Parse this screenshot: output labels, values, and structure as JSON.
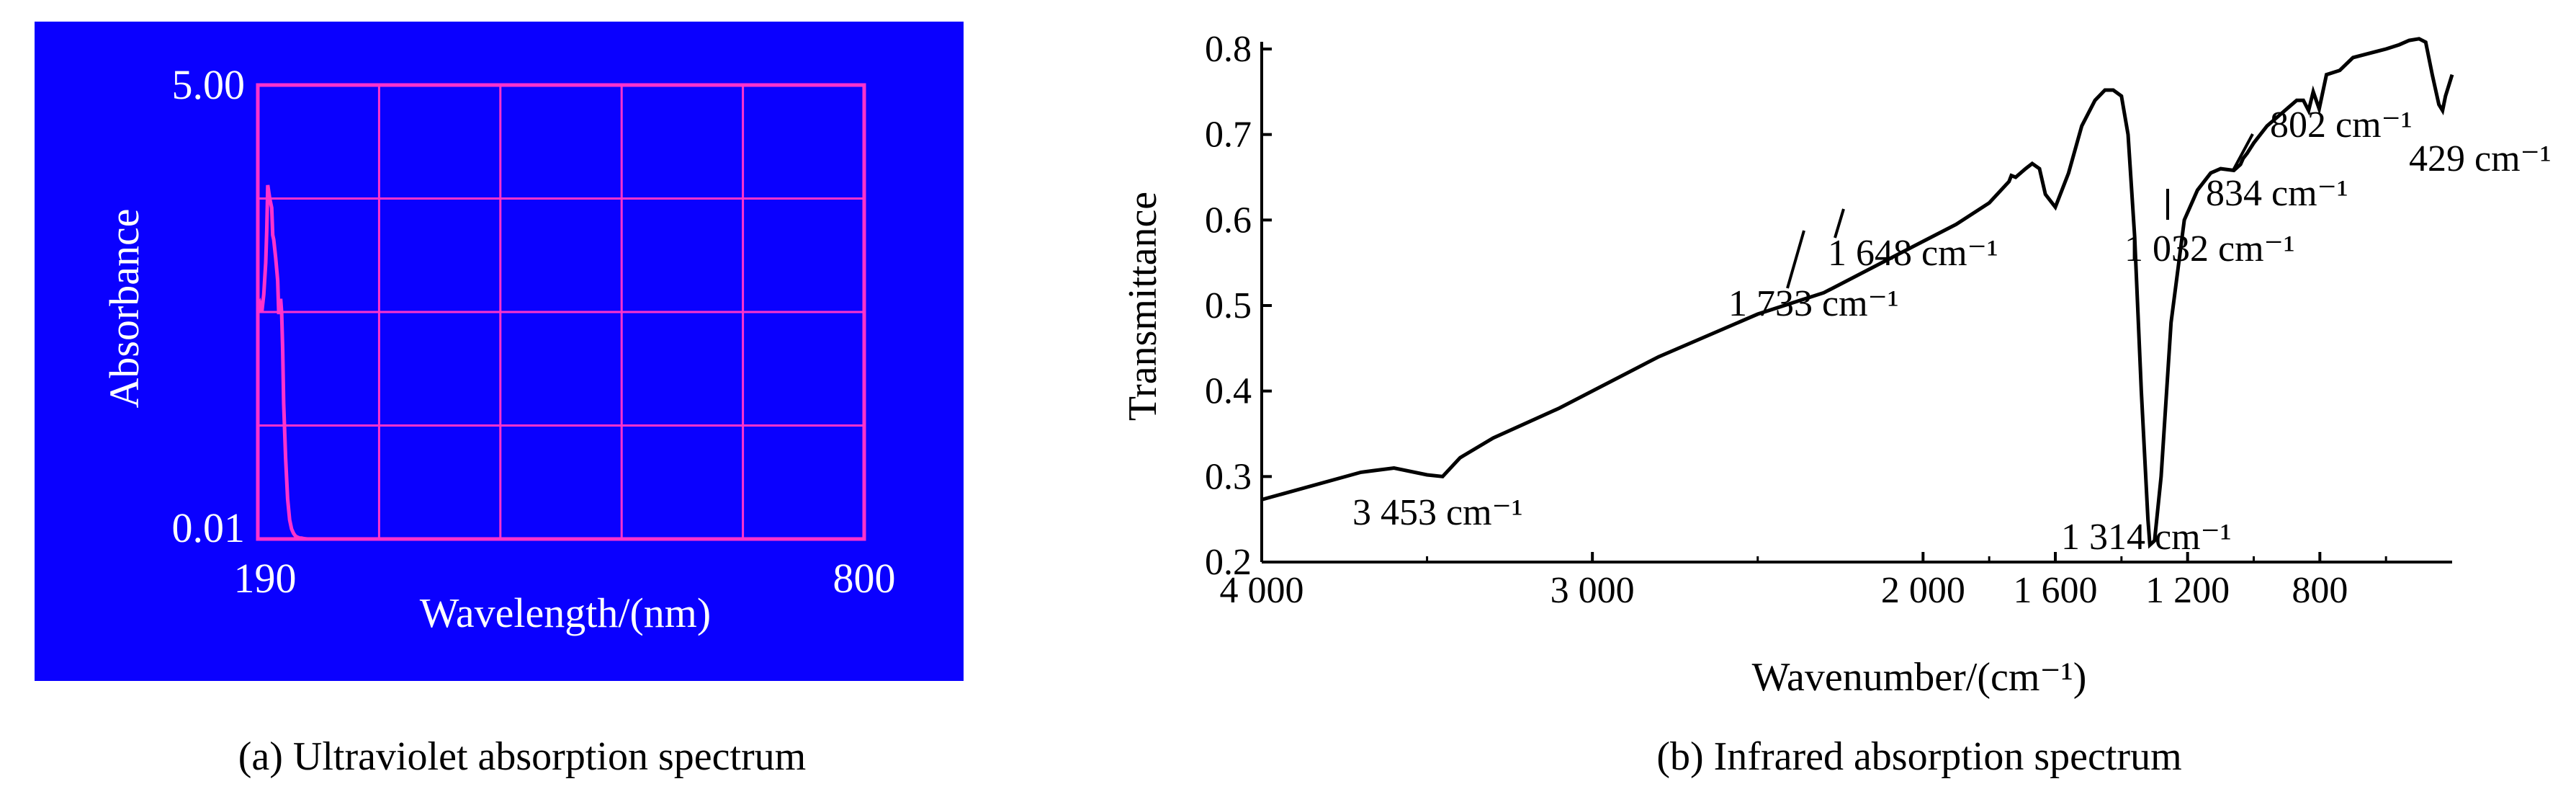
{
  "colors": {
    "uv_background": "#0a00ff",
    "uv_ink": "#ff33cc",
    "uv_text": "#ffffff",
    "ir_ink": "#000000"
  },
  "chart_data": [
    {
      "type": "line",
      "caption": "(a) Ultraviolet absorption spectrum",
      "xlabel": "Wavelength/(nm)",
      "ylabel": "Absorbance",
      "xlim": [
        190,
        800
      ],
      "ylim": [
        0.01,
        5.0
      ],
      "x_tick_labels": [
        "190",
        "800"
      ],
      "y_tick_labels": [
        "5.00",
        "0.01"
      ],
      "grid": true,
      "x": [
        190,
        192,
        194,
        196,
        198,
        199,
        200,
        202,
        204,
        205,
        206,
        208,
        210,
        211,
        212,
        213,
        214,
        215,
        216,
        218,
        220,
        222,
        224,
        226,
        228,
        230,
        232,
        234,
        236,
        238,
        240,
        250,
        260,
        280,
        300,
        320,
        340,
        800
      ],
      "y": [
        2.55,
        2.6,
        2.5,
        2.7,
        3.05,
        3.4,
        3.9,
        3.75,
        3.65,
        3.35,
        3.3,
        3.1,
        2.85,
        2.5,
        2.5,
        2.65,
        2.5,
        2.1,
        1.5,
        0.9,
        0.45,
        0.22,
        0.12,
        0.07,
        0.04,
        0.03,
        0.02,
        0.02,
        0.015,
        0.012,
        0.01,
        0.01,
        0.01,
        0.01,
        0.01,
        0.01,
        0.01,
        0.01
      ]
    },
    {
      "type": "line",
      "caption": "(b) Infrared absorption spectrum",
      "xlabel": "Wavenumber/(cm⁻¹)",
      "ylabel": "Transmittance",
      "xlim": [
        4000,
        400
      ],
      "ylim": [
        0.2,
        0.8
      ],
      "x_ticks": [
        4000,
        3000,
        2000,
        1600,
        1200,
        800
      ],
      "x_tick_labels": [
        "4 000",
        "3 000",
        "2 000",
        "1 600",
        "1 200",
        "800"
      ],
      "y_ticks": [
        0.2,
        0.3,
        0.4,
        0.5,
        0.6,
        0.7,
        0.8
      ],
      "y_tick_labels": [
        "0.2",
        "0.3",
        "0.4",
        "0.5",
        "0.6",
        "0.7",
        "0.8"
      ],
      "grid": false,
      "x": [
        4000,
        3700,
        3600,
        3500,
        3453,
        3400,
        3300,
        3100,
        2800,
        2500,
        2300,
        2200,
        2000,
        1900,
        1800,
        1740,
        1733,
        1720,
        1690,
        1670,
        1648,
        1630,
        1600,
        1560,
        1520,
        1480,
        1450,
        1425,
        1400,
        1380,
        1360,
        1340,
        1320,
        1314,
        1300,
        1280,
        1250,
        1210,
        1170,
        1130,
        1100,
        1060,
        1040,
        1032,
        1020,
        1000,
        960,
        900,
        870,
        850,
        834,
        820,
        802,
        780,
        740,
        700,
        650,
        600,
        560,
        530,
        500,
        480,
        460,
        440,
        429,
        420,
        400
      ],
      "y": [
        0.273,
        0.305,
        0.31,
        0.302,
        0.3,
        0.322,
        0.345,
        0.38,
        0.44,
        0.49,
        0.515,
        0.535,
        0.575,
        0.595,
        0.62,
        0.645,
        0.652,
        0.65,
        0.66,
        0.666,
        0.66,
        0.63,
        0.615,
        0.655,
        0.71,
        0.74,
        0.752,
        0.752,
        0.745,
        0.7,
        0.58,
        0.4,
        0.25,
        0.22,
        0.225,
        0.3,
        0.48,
        0.6,
        0.635,
        0.655,
        0.66,
        0.658,
        0.665,
        0.672,
        0.678,
        0.69,
        0.71,
        0.73,
        0.74,
        0.74,
        0.728,
        0.75,
        0.73,
        0.77,
        0.775,
        0.79,
        0.795,
        0.8,
        0.805,
        0.81,
        0.812,
        0.808,
        0.77,
        0.735,
        0.728,
        0.745,
        0.77
      ],
      "annotations": [
        "3 453 cm⁻¹",
        "1 733 cm⁻¹",
        "1 648 cm⁻¹",
        "1 314 cm⁻¹",
        "1 032 cm⁻¹",
        "834 cm⁻¹",
        "802 cm⁻¹",
        "429 cm⁻¹"
      ]
    }
  ]
}
